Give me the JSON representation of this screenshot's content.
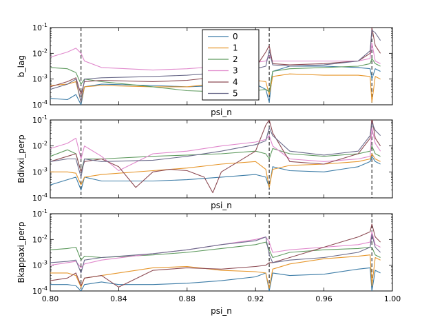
{
  "chart_data": {
    "type": "line",
    "x_range": [
      0.8,
      1.0
    ],
    "x_ticks": [
      0.8,
      0.84,
      0.88,
      0.92,
      0.96,
      1.0
    ],
    "x_tick_labels": [
      "0.80",
      "0.84",
      "0.88",
      "0.92",
      "0.96",
      "1.00"
    ],
    "y_ticks_exp": [
      -4,
      -3,
      -2,
      -1
    ],
    "y_tick_labels": [
      "10-4",
      "10-3",
      "10-2",
      "10-1"
    ],
    "vlines": [
      0.818,
      0.928,
      0.988
    ],
    "legend": {
      "position": "upper center of top panel",
      "entries": [
        {
          "label": "0",
          "color": "#3b7ba6"
        },
        {
          "label": "1",
          "color": "#e6962b"
        },
        {
          "label": "2",
          "color": "#5e9a5e"
        },
        {
          "label": "3",
          "color": "#e088cc"
        },
        {
          "label": "4",
          "color": "#8c4a53"
        },
        {
          "label": "5",
          "color": "#6b6b8b"
        }
      ]
    },
    "panels": [
      {
        "ylabel": "b_lag",
        "xlabel": "psi_n",
        "ylim_exp": [
          -4,
          -1
        ],
        "series": [
          {
            "name": "0",
            "x": [
              0.8,
              0.81,
              0.815,
              0.818,
              0.82,
              0.83,
              0.86,
              0.88,
              0.9,
              0.92,
              0.926,
              0.928,
              0.93,
              0.94,
              0.96,
              0.98,
              0.987,
              0.988,
              0.99,
              0.993
            ],
            "y": [
              -3.75,
              -3.8,
              -3.6,
              -4.0,
              -3.3,
              -3.2,
              -3.25,
              -3.3,
              -3.25,
              -3.2,
              -3.4,
              -3.9,
              -2.7,
              -2.5,
              -2.5,
              -2.55,
              -2.6,
              -3.0,
              -2.6,
              -2.7
            ]
          },
          {
            "name": "1",
            "x": [
              0.8,
              0.81,
              0.815,
              0.818,
              0.82,
              0.83,
              0.86,
              0.88,
              0.9,
              0.92,
              0.926,
              0.928,
              0.93,
              0.94,
              0.96,
              0.98,
              0.987,
              0.988,
              0.99,
              0.993
            ],
            "y": [
              -3.25,
              -3.2,
              -3.1,
              -3.9,
              -3.3,
              -3.25,
              -3.3,
              -3.3,
              -3.15,
              -3.05,
              -3.1,
              -3.6,
              -2.9,
              -2.8,
              -2.85,
              -2.85,
              -2.9,
              -3.9,
              -2.9,
              -3.0
            ]
          },
          {
            "name": "2",
            "x": [
              0.8,
              0.81,
              0.815,
              0.818,
              0.82,
              0.83,
              0.86,
              0.88,
              0.9,
              0.92,
              0.926,
              0.928,
              0.93,
              0.94,
              0.96,
              0.98,
              0.987,
              0.988,
              0.99,
              0.993
            ],
            "y": [
              -2.55,
              -2.6,
              -2.75,
              -3.2,
              -3.0,
              -3.1,
              -3.3,
              -3.45,
              -3.5,
              -3.45,
              -3.4,
              -3.5,
              -2.7,
              -2.6,
              -2.55,
              -2.5,
              -2.4,
              -2.2,
              -2.4,
              -2.5
            ]
          },
          {
            "name": "3",
            "x": [
              0.8,
              0.81,
              0.815,
              0.818,
              0.82,
              0.83,
              0.86,
              0.88,
              0.9,
              0.92,
              0.926,
              0.928,
              0.93,
              0.94,
              0.96,
              0.98,
              0.987,
              0.988,
              0.99,
              0.993
            ],
            "y": [
              -2.15,
              -1.95,
              -1.8,
              -2.0,
              -2.3,
              -2.55,
              -2.65,
              -2.6,
              -2.5,
              -2.35,
              -2.3,
              -2.1,
              -2.3,
              -2.3,
              -2.3,
              -2.3,
              -2.2,
              -1.6,
              -2.3,
              -2.4
            ]
          },
          {
            "name": "4",
            "x": [
              0.8,
              0.81,
              0.815,
              0.818,
              0.82,
              0.83,
              0.86,
              0.88,
              0.9,
              0.92,
              0.926,
              0.928,
              0.93,
              0.94,
              0.96,
              0.98,
              0.987,
              0.988,
              0.99,
              0.993
            ],
            "y": [
              -3.3,
              -3.1,
              -2.95,
              -3.6,
              -3.1,
              -3.05,
              -3.1,
              -3.05,
              -2.9,
              -2.55,
              -1.95,
              -1.7,
              -2.4,
              -2.45,
              -2.4,
              -2.3,
              -2.0,
              -1.0,
              -1.7,
              -2.0
            ]
          },
          {
            "name": "5",
            "x": [
              0.8,
              0.81,
              0.815,
              0.818,
              0.82,
              0.83,
              0.86,
              0.88,
              0.9,
              0.92,
              0.926,
              0.928,
              0.93,
              0.94,
              0.96,
              0.98,
              0.987,
              0.988,
              0.99,
              0.993
            ],
            "y": [
              -3.4,
              -3.2,
              -3.0,
              -3.9,
              -3.0,
              -2.95,
              -2.9,
              -2.85,
              -2.75,
              -2.6,
              -2.5,
              -1.9,
              -2.45,
              -2.5,
              -2.45,
              -2.3,
              -1.9,
              -1.1,
              -1.2,
              -1.5
            ]
          }
        ]
      },
      {
        "ylabel": "Bdivxi_perp",
        "xlabel": "psi_n",
        "ylim_exp": [
          -4,
          -1
        ],
        "series": [
          {
            "name": "0",
            "x": [
              0.8,
              0.81,
              0.815,
              0.818,
              0.82,
              0.83,
              0.86,
              0.88,
              0.9,
              0.92,
              0.926,
              0.928,
              0.93,
              0.94,
              0.96,
              0.98,
              0.987,
              0.988,
              0.99,
              0.993
            ],
            "y": [
              -3.5,
              -3.3,
              -3.2,
              -3.7,
              -3.2,
              -3.35,
              -3.35,
              -3.3,
              -3.2,
              -3.1,
              -3.2,
              -3.6,
              -2.8,
              -2.95,
              -3.0,
              -2.8,
              -2.6,
              -2.4,
              -2.6,
              -2.7
            ]
          },
          {
            "name": "1",
            "x": [
              0.8,
              0.81,
              0.815,
              0.818,
              0.82,
              0.83,
              0.86,
              0.88,
              0.9,
              0.92,
              0.926,
              0.928,
              0.93,
              0.94,
              0.96,
              0.98,
              0.987,
              0.988,
              0.99,
              0.993
            ],
            "y": [
              -3.0,
              -3.0,
              -3.05,
              -3.5,
              -3.2,
              -3.1,
              -2.95,
              -2.85,
              -2.7,
              -2.6,
              -2.9,
              -3.6,
              -2.9,
              -2.75,
              -2.7,
              -2.6,
              -2.5,
              -2.3,
              -2.5,
              -2.6
            ]
          },
          {
            "name": "2",
            "x": [
              0.8,
              0.81,
              0.815,
              0.818,
              0.82,
              0.83,
              0.86,
              0.88,
              0.9,
              0.92,
              0.926,
              0.928,
              0.93,
              0.94,
              0.96,
              0.98,
              0.987,
              0.988,
              0.99,
              0.993
            ],
            "y": [
              -2.4,
              -2.15,
              -2.3,
              -3.0,
              -2.5,
              -2.5,
              -2.4,
              -2.35,
              -2.3,
              -2.2,
              -2.3,
              -2.5,
              -2.1,
              -2.3,
              -2.4,
              -2.3,
              -2.2,
              -2.0,
              -2.3,
              -2.4
            ]
          },
          {
            "name": "3",
            "x": [
              0.8,
              0.81,
              0.815,
              0.818,
              0.82,
              0.83,
              0.84,
              0.86,
              0.88,
              0.9,
              0.92,
              0.926,
              0.928,
              0.93,
              0.94,
              0.96,
              0.98,
              0.987,
              0.988,
              0.99,
              0.993
            ],
            "y": [
              -2.1,
              -1.9,
              -1.7,
              -2.5,
              -2.0,
              -2.4,
              -2.95,
              -2.3,
              -2.2,
              -2.0,
              -1.85,
              -1.75,
              -1.6,
              -2.0,
              -2.5,
              -2.6,
              -2.5,
              -2.4,
              -1.3,
              -1.9,
              -2.2
            ]
          },
          {
            "name": "4",
            "x": [
              0.8,
              0.81,
              0.815,
              0.818,
              0.82,
              0.83,
              0.84,
              0.85,
              0.86,
              0.87,
              0.88,
              0.89,
              0.895,
              0.9,
              0.91,
              0.92,
              0.926,
              0.928,
              0.93,
              0.94,
              0.96,
              0.98,
              0.987,
              0.988,
              0.99,
              0.993
            ],
            "y": [
              -2.6,
              -2.4,
              -2.3,
              -3.0,
              -2.6,
              -2.5,
              -2.8,
              -3.6,
              -3.0,
              -2.9,
              -2.95,
              -3.2,
              -3.8,
              -3.0,
              -2.6,
              -2.2,
              -1.2,
              -1.0,
              -1.5,
              -2.6,
              -2.7,
              -2.3,
              -1.7,
              -0.9,
              -1.7,
              -2.0
            ]
          },
          {
            "name": "5",
            "x": [
              0.8,
              0.81,
              0.815,
              0.818,
              0.82,
              0.83,
              0.86,
              0.88,
              0.9,
              0.92,
              0.926,
              0.928,
              0.93,
              0.94,
              0.96,
              0.98,
              0.987,
              0.988,
              0.99,
              0.993
            ],
            "y": [
              -2.6,
              -2.5,
              -2.5,
              -3.2,
              -2.5,
              -2.6,
              -2.55,
              -2.4,
              -2.2,
              -1.95,
              -1.8,
              -1.3,
              -1.6,
              -2.2,
              -2.35,
              -2.2,
              -1.6,
              -1.1,
              -1.4,
              -1.6
            ]
          }
        ]
      },
      {
        "ylabel": "Bkappaxi_perp",
        "xlabel": "psi_n",
        "ylim_exp": [
          -4,
          -1
        ],
        "series": [
          {
            "name": "0",
            "x": [
              0.8,
              0.81,
              0.815,
              0.818,
              0.82,
              0.83,
              0.84,
              0.86,
              0.88,
              0.9,
              0.92,
              0.926,
              0.928,
              0.93,
              0.94,
              0.96,
              0.98,
              0.987,
              0.988,
              0.99,
              0.993
            ],
            "y": [
              -3.75,
              -3.75,
              -3.8,
              -4.0,
              -3.75,
              -3.65,
              -3.75,
              -3.75,
              -3.7,
              -3.6,
              -3.45,
              -3.3,
              -4.0,
              -3.3,
              -3.4,
              -3.35,
              -3.15,
              -3.1,
              -4.0,
              -3.2,
              -3.3
            ]
          },
          {
            "name": "1",
            "x": [
              0.8,
              0.81,
              0.815,
              0.818,
              0.82,
              0.83,
              0.86,
              0.88,
              0.9,
              0.92,
              0.926,
              0.928,
              0.93,
              0.94,
              0.96,
              0.98,
              0.987,
              0.988,
              0.99,
              0.993
            ],
            "y": [
              -3.3,
              -3.3,
              -3.4,
              -3.85,
              -3.5,
              -3.4,
              -3.1,
              -3.05,
              -3.2,
              -3.25,
              -3.3,
              -3.9,
              -3.15,
              -2.95,
              -2.75,
              -2.65,
              -2.6,
              -3.8,
              -2.7,
              -2.8
            ]
          },
          {
            "name": "2",
            "x": [
              0.8,
              0.81,
              0.815,
              0.818,
              0.82,
              0.83,
              0.86,
              0.88,
              0.9,
              0.92,
              0.926,
              0.928,
              0.93,
              0.94,
              0.96,
              0.98,
              0.987,
              0.988,
              0.99,
              0.993
            ],
            "y": [
              -2.4,
              -2.35,
              -2.3,
              -2.8,
              -2.65,
              -2.7,
              -2.6,
              -2.5,
              -2.35,
              -2.2,
              -2.1,
              -2.4,
              -2.7,
              -2.5,
              -2.4,
              -2.35,
              -2.3,
              -2.3,
              -2.6,
              -2.7
            ]
          },
          {
            "name": "3",
            "x": [
              0.8,
              0.81,
              0.815,
              0.818,
              0.82,
              0.83,
              0.86,
              0.88,
              0.9,
              0.92,
              0.926,
              0.928,
              0.93,
              0.94,
              0.96,
              0.98,
              0.987,
              0.988,
              0.99,
              0.993
            ],
            "y": [
              -3.0,
              -2.9,
              -2.85,
              -3.1,
              -2.95,
              -2.8,
              -2.55,
              -2.4,
              -2.2,
              -2.0,
              -1.9,
              -2.1,
              -2.5,
              -2.4,
              -2.3,
              -2.2,
              -2.1,
              -1.7,
              -2.2,
              -2.3
            ]
          },
          {
            "name": "4",
            "x": [
              0.8,
              0.81,
              0.815,
              0.818,
              0.82,
              0.83,
              0.84,
              0.86,
              0.88,
              0.9,
              0.92,
              0.926,
              0.928,
              0.93,
              0.94,
              0.96,
              0.98,
              0.987,
              0.988,
              0.99,
              0.993
            ],
            "y": [
              -3.6,
              -3.5,
              -3.3,
              -3.8,
              -3.5,
              -3.4,
              -3.85,
              -3.2,
              -3.1,
              -3.15,
              -3.05,
              -3.0,
              -2.9,
              -2.9,
              -2.7,
              -2.3,
              -1.9,
              -1.7,
              -1.4,
              -1.9,
              -2.1
            ]
          },
          {
            "name": "5",
            "x": [
              0.8,
              0.81,
              0.815,
              0.818,
              0.82,
              0.83,
              0.86,
              0.88,
              0.9,
              0.92,
              0.926,
              0.928,
              0.93,
              0.94,
              0.96,
              0.98,
              0.987,
              0.988,
              0.99,
              0.993
            ],
            "y": [
              -2.9,
              -2.85,
              -2.8,
              -3.3,
              -2.8,
              -2.7,
              -2.55,
              -2.4,
              -2.2,
              -2.05,
              -1.9,
              -2.6,
              -2.9,
              -2.8,
              -2.7,
              -2.5,
              -2.3,
              -1.8,
              -2.3,
              -2.5
            ]
          }
        ]
      }
    ]
  }
}
